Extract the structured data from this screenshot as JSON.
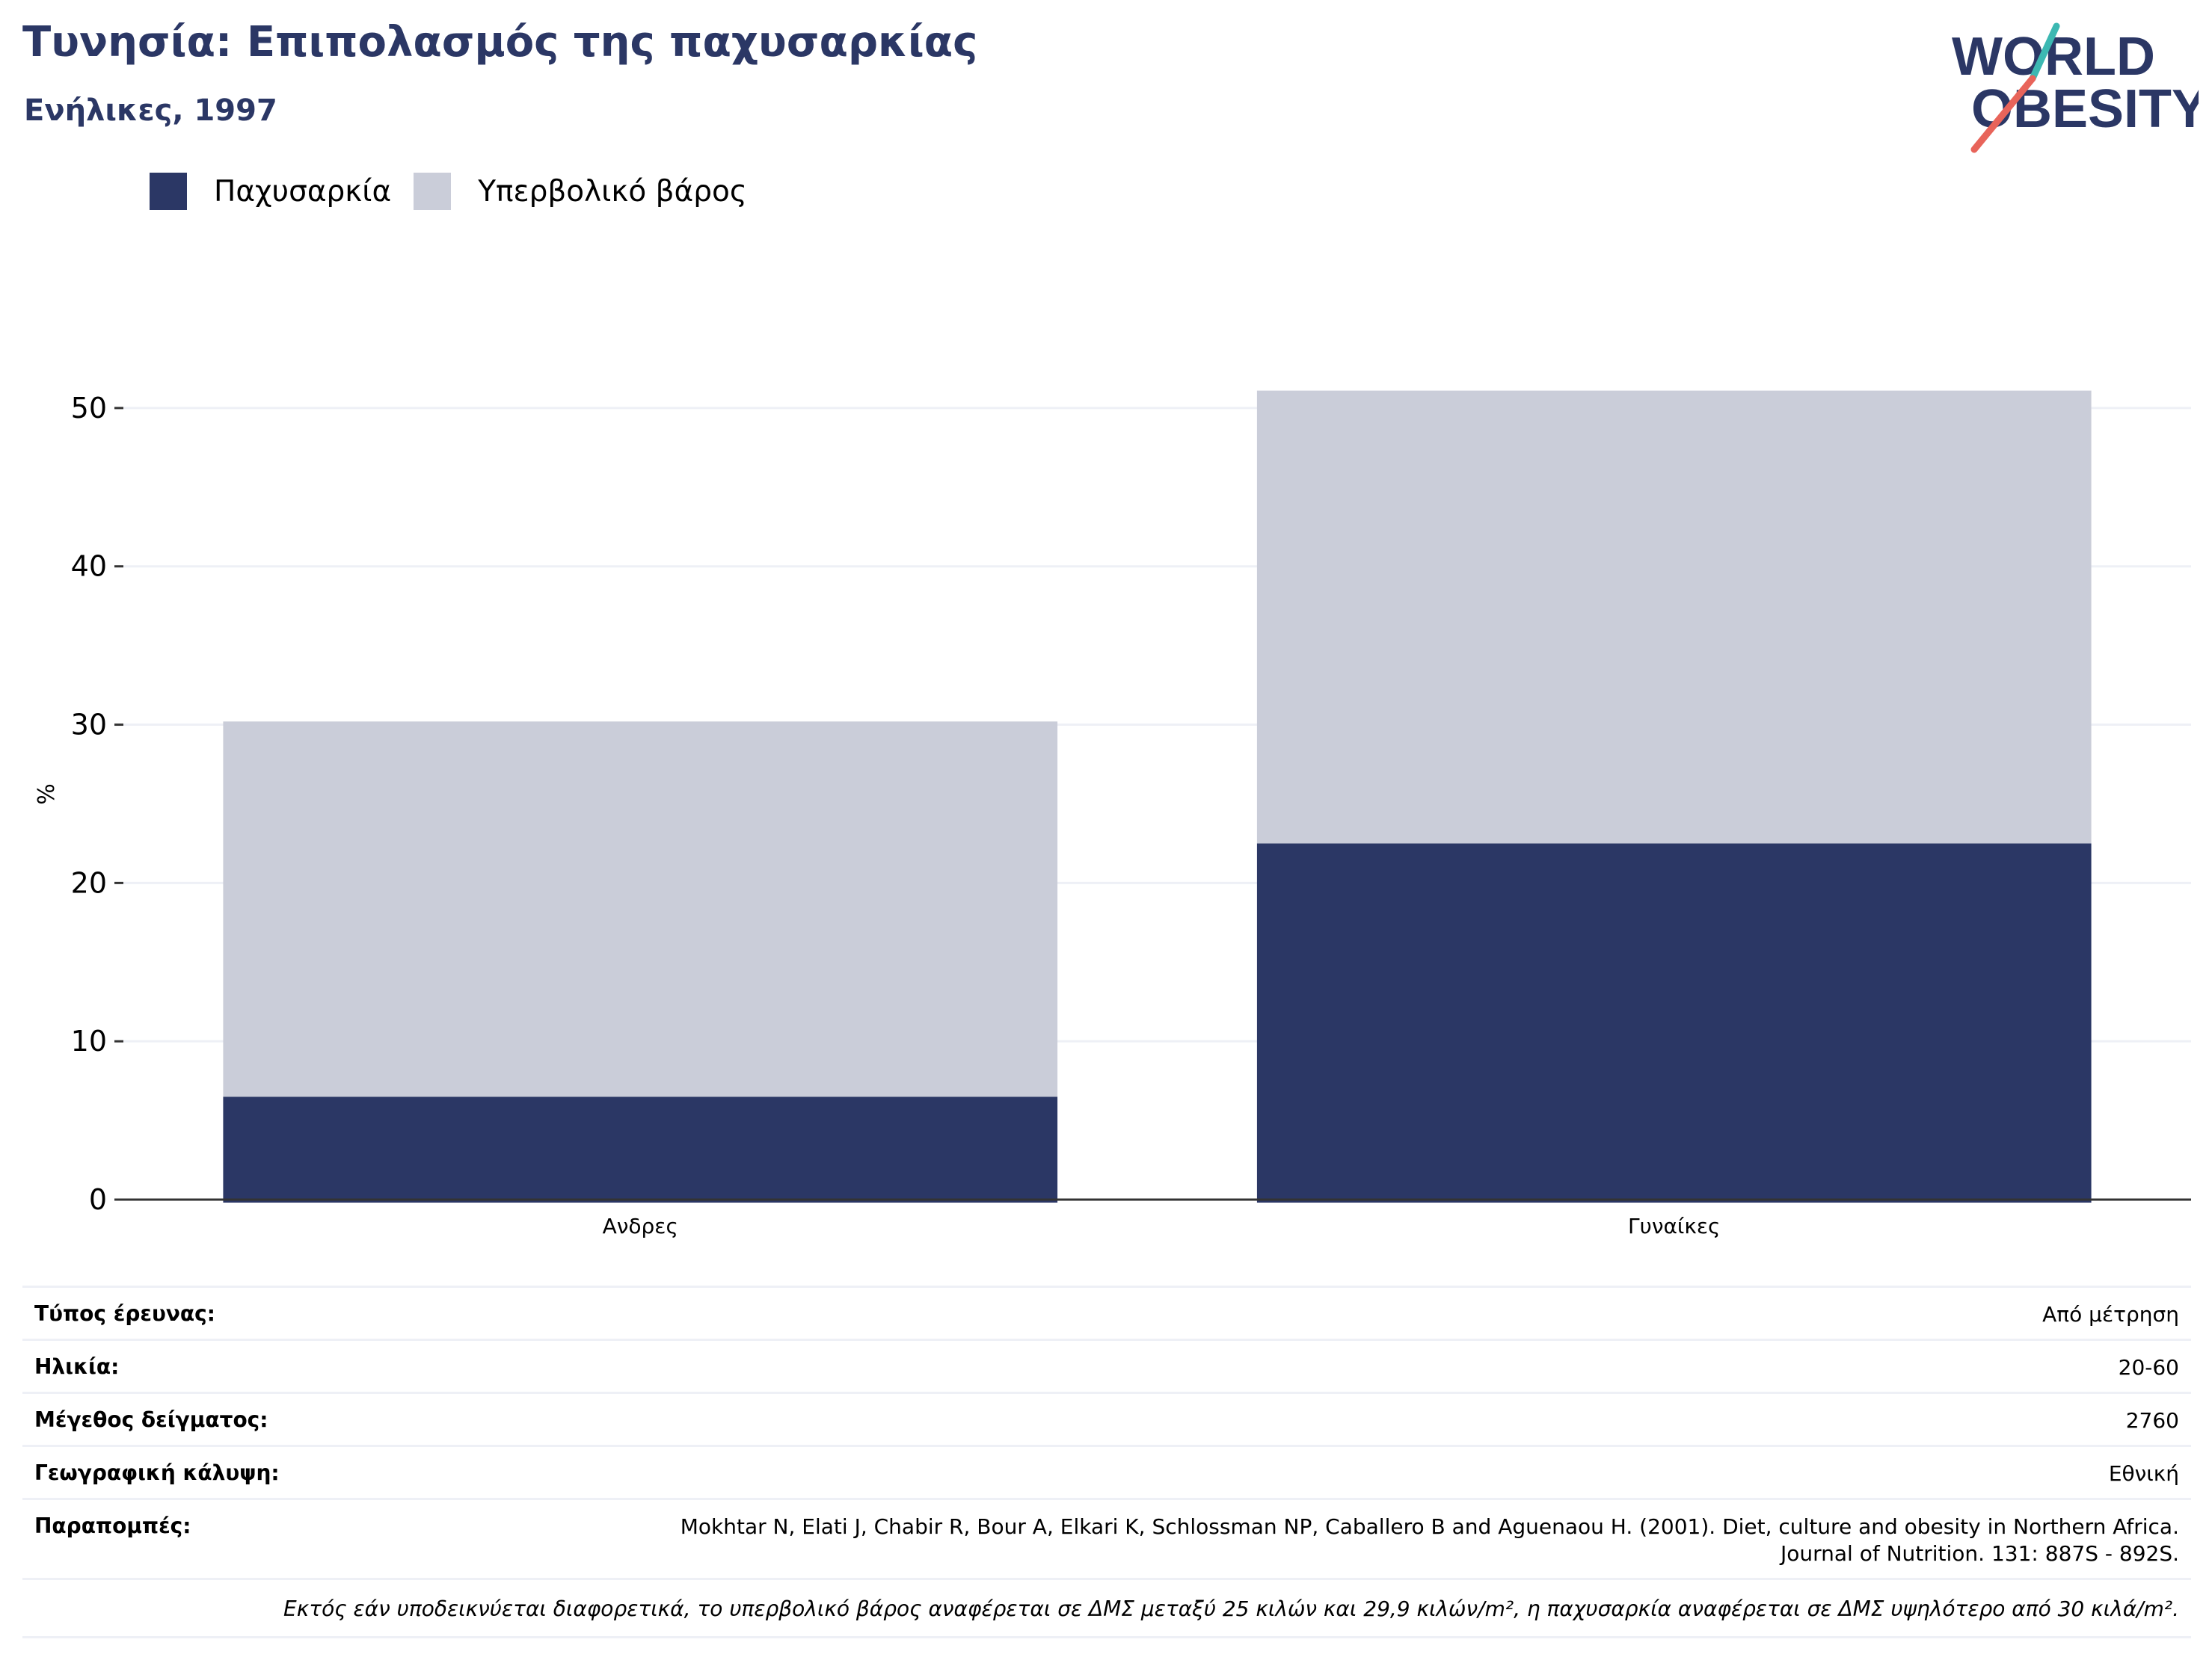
{
  "header": {
    "title": "Τυνησία: Επιπολασμός της παχυσαρκίας",
    "subtitle": "Ενήλικες, 1997"
  },
  "logo": {
    "line1": "WORLD",
    "line2": "OBESITY"
  },
  "colors": {
    "obesity": "#2b3765",
    "overweight": "#cacdd9",
    "text_navy": "#2b3765",
    "grid": "#eef0f6"
  },
  "chart_data": {
    "type": "bar",
    "stacked": true,
    "title": "",
    "xlabel": "",
    "ylabel": "%",
    "categories": [
      "Ανδρες",
      "Γυναίκες"
    ],
    "series": [
      {
        "name": "Παχυσαρκία",
        "values": [
          6.5,
          22.5
        ]
      },
      {
        "name": "Υπερβολικό βάρος",
        "values": [
          23.7,
          28.6
        ]
      }
    ],
    "totals": [
      30.2,
      51.1
    ],
    "ylim": [
      0,
      55
    ],
    "yticks": [
      0,
      10,
      20,
      30,
      40,
      50
    ],
    "grid": true,
    "legend_position": "top-left"
  },
  "meta": {
    "survey_type_label": "Τύπος έρευνας:",
    "survey_type_value": "Από μέτρηση",
    "age_label": "Ηλικία:",
    "age_value": "20-60",
    "sample_size_label": "Μέγεθος δείγματος:",
    "sample_size_value": "2760",
    "coverage_label": "Γεωγραφική κάλυψη:",
    "coverage_value": "Εθνική",
    "references_label": "Παραπομπές:",
    "references_value": "Mokhtar N, Elati J, Chabir R, Bour A, Elkari K, Schlossman NP, Caballero B and Aguenaou H. (2001). Diet, culture and obesity in Northern Africa. Journal of Nutrition. 131: 887S - 892S.",
    "note": "Εκτός εάν υποδεικνύεται διαφορετικά, το υπερβολικό βάρος αναφέρεται σε ΔΜΣ μεταξύ 25 κιλών και 29,9 κιλών/m², η παχυσαρκία αναφέρεται σε ΔΜΣ υψηλότερο από 30 κιλά/m²."
  }
}
